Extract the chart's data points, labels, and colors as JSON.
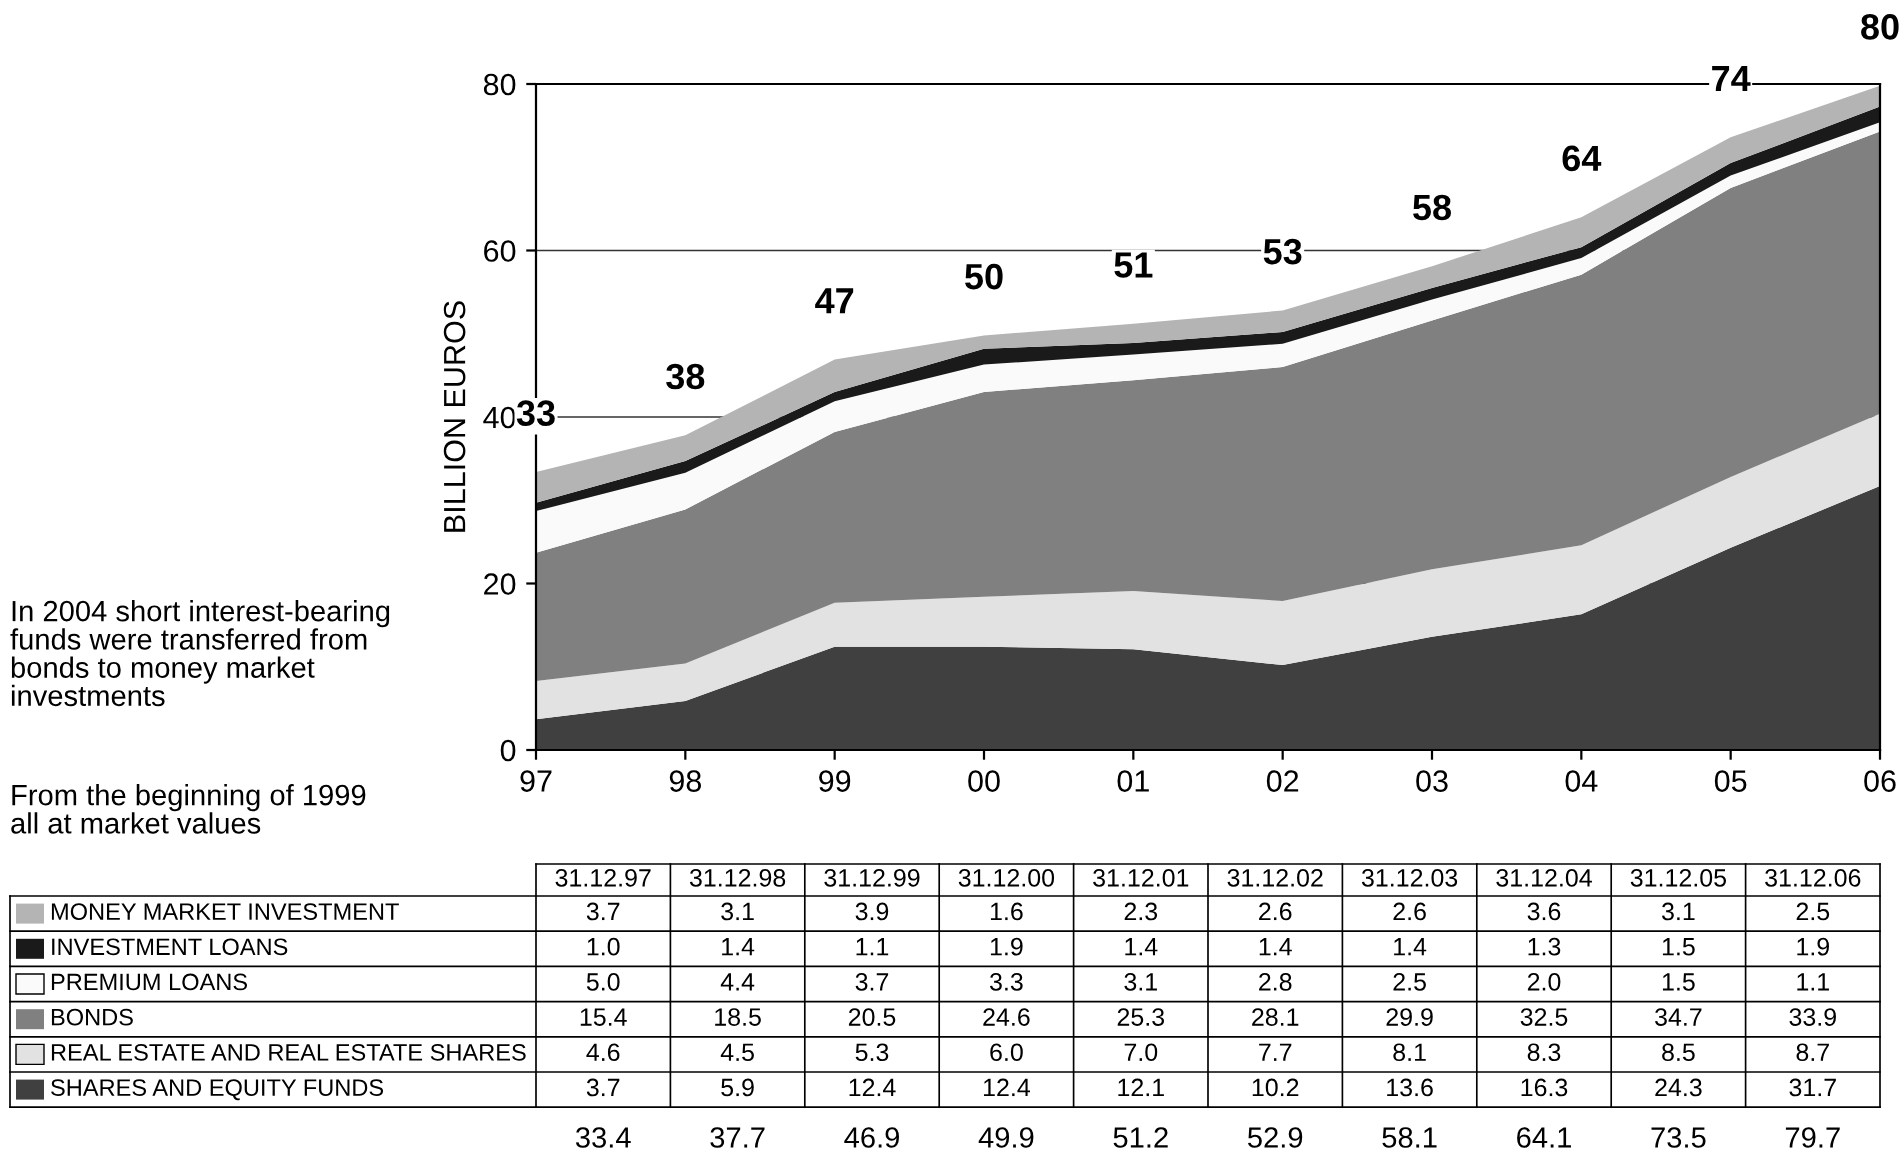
{
  "chart_data": {
    "type": "area",
    "stacked": true,
    "ylabel": "BILLION EUROS",
    "categories": [
      "97",
      "98",
      "99",
      "00",
      "01",
      "02",
      "03",
      "04",
      "05",
      "06"
    ],
    "series": [
      {
        "name": "SHARES AND EQUITY FUNDS",
        "color": "#404040",
        "values": [
          3.7,
          5.9,
          12.4,
          12.4,
          12.1,
          10.2,
          13.6,
          16.3,
          24.3,
          31.7
        ],
        "value_labels": [
          "3.7",
          "5.9",
          "12.4",
          "12.4",
          "12.1",
          "10.2",
          "13.6",
          "16.3",
          "24.3",
          "31.7"
        ]
      },
      {
        "name": "REAL ESTATE AND REAL ESTATE SHARES",
        "color": "#e2e2e2",
        "values": [
          4.6,
          4.5,
          5.3,
          6.0,
          7.0,
          7.7,
          8.1,
          8.3,
          8.5,
          8.7
        ],
        "value_labels": [
          "4.6",
          "4.5",
          "5.3",
          "6.0",
          "7.0",
          "7.7",
          "8.1",
          "8.3",
          "8.5",
          "8.7"
        ]
      },
      {
        "name": "BONDS",
        "color": "#808080",
        "values": [
          15.4,
          18.5,
          20.5,
          24.6,
          25.3,
          28.1,
          29.9,
          32.5,
          34.7,
          33.9
        ],
        "value_labels": [
          "15.4",
          "18.5",
          "20.5",
          "24.6",
          "25.3",
          "28.1",
          "29.9",
          "32.5",
          "34.7",
          "33.9"
        ]
      },
      {
        "name": "PREMIUM LOANS",
        "color": "#fafafa",
        "values": [
          5.0,
          4.4,
          3.7,
          3.3,
          3.1,
          2.8,
          2.5,
          2.0,
          1.5,
          1.1
        ],
        "value_labels": [
          "5.0",
          "4.4",
          "3.7",
          "3.3",
          "3.1",
          "2.8",
          "2.5",
          "2.0",
          "1.5",
          "1.1"
        ]
      },
      {
        "name": "INVESTMENT LOANS",
        "color": "#1a1a1a",
        "values": [
          1.0,
          1.4,
          1.1,
          1.9,
          1.4,
          1.4,
          1.4,
          1.3,
          1.5,
          1.9
        ],
        "value_labels": [
          "1.0",
          "1.4",
          "1.1",
          "1.9",
          "1.4",
          "1.4",
          "1.4",
          "1.3",
          "1.5",
          "1.9"
        ]
      },
      {
        "name": "MONEY MARKET INVESTMENT",
        "color": "#b4b4b4",
        "values": [
          3.7,
          3.1,
          3.9,
          1.6,
          2.3,
          2.6,
          2.6,
          3.6,
          3.1,
          2.5
        ],
        "value_labels": [
          "3.7",
          "3.1",
          "3.9",
          "1.6",
          "2.3",
          "2.6",
          "2.6",
          "3.6",
          "3.1",
          "2.5"
        ]
      }
    ],
    "ylim": [
      0,
      80
    ],
    "yticks": [
      0,
      20,
      40,
      60,
      80
    ],
    "grid": "y",
    "legend": "bottom",
    "totals": [
      "33",
      "38",
      "47",
      "50",
      "51",
      "53",
      "58",
      "64",
      "74",
      "80"
    ],
    "annotations": [
      "In 2004 short interest-bearing\nfunds were transferred from\nbonds to money market\ninvestments",
      "From the beginning of 1999\nall at market values",
      "31.12.97",
      "31.12.98",
      "31.12.99",
      "31.12.00",
      "31.12.01",
      "31.12.02",
      "31.12.03",
      "31.12.04",
      "31.12.05",
      "31.12.06",
      "33.4",
      "37.7",
      "46.9",
      "49.9",
      "51.2",
      "52.9",
      "58.1",
      "64.1",
      "73.5",
      "79.7"
    ]
  }
}
